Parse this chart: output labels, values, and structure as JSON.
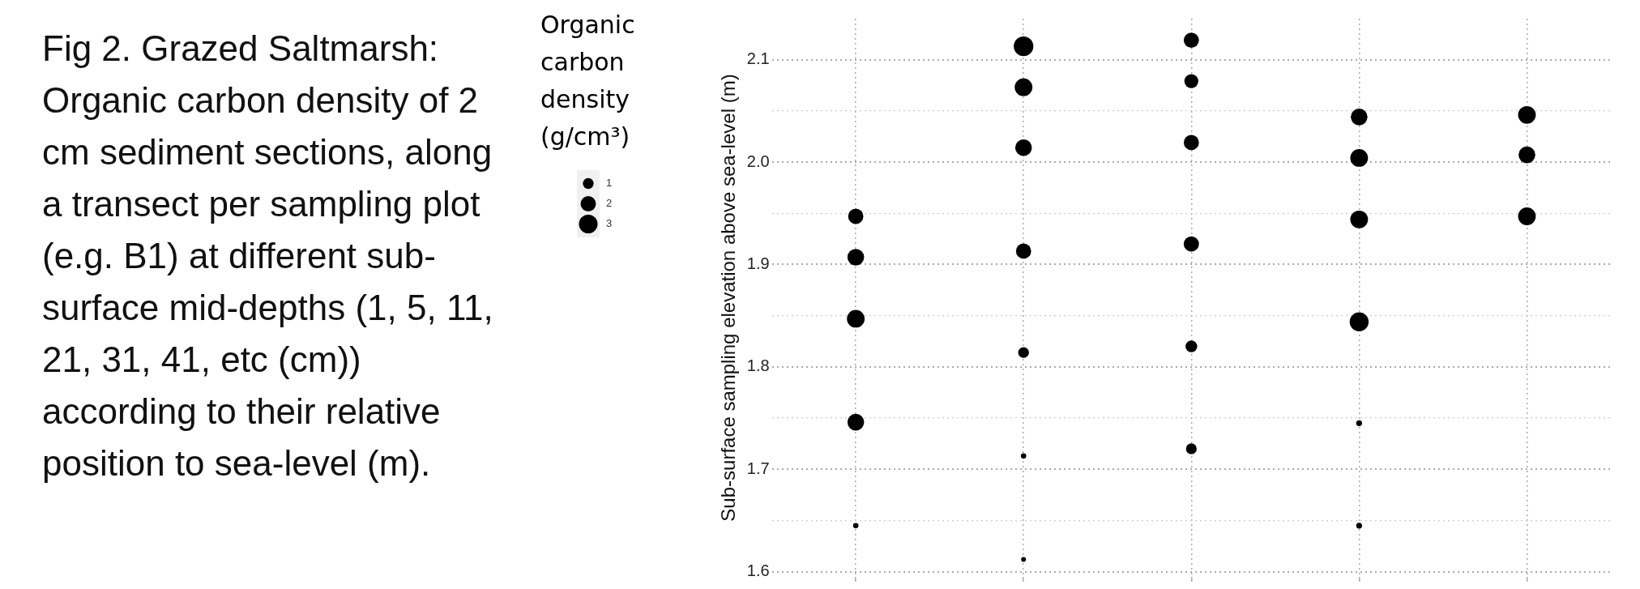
{
  "chart_data": {
    "type": "bubble",
    "title": "Fig 2. Grazed Saltmarsh: Organic carbon density of 2 cm sediment sections, along a transect per sampling plot (e.g. B1) at different sub-surface mid-depths (1, 5, 11, 21, 31, 41, etc (cm)) according to their relative position to sea-level (m).",
    "ylabel": "Sub-surface sampling elevation above sea-level (m)",
    "legend_title": "Organic carbon density (g/cm³)",
    "categories": [
      null,
      null,
      null,
      null,
      null
    ],
    "series": [
      {
        "color": "#000000",
        "values": [
          1.947,
          2.113,
          2.119,
          2.044,
          2.046
        ],
        "sizes": [
          2.0,
          3.3,
          2.0,
          2.4,
          2.7
        ]
      },
      {
        "color": "#000000",
        "values": [
          1.907,
          2.073,
          2.079,
          2.004,
          2.007
        ],
        "sizes": [
          2.4,
          2.7,
          1.7,
          2.7,
          2.4
        ]
      },
      {
        "color": "#000000",
        "values": [
          1.847,
          2.014,
          2.019,
          1.944,
          1.947
        ],
        "sizes": [
          2.7,
          2.4,
          2.0,
          2.7,
          2.7
        ]
      },
      {
        "color": "#000000",
        "values": [
          1.746,
          1.913,
          1.92,
          1.844,
          null
        ],
        "sizes": [
          2.4,
          2.0,
          2.0,
          3.1,
          null
        ]
      },
      {
        "color": "#000000",
        "values": [
          1.645,
          1.814,
          1.82,
          1.745,
          null
        ],
        "sizes": [
          0.25,
          1.0,
          1.2,
          0.3,
          null
        ]
      },
      {
        "color": "#000000",
        "values": [
          null,
          1.713,
          1.72,
          1.645,
          null
        ],
        "sizes": [
          null,
          0.25,
          1.0,
          0.3,
          null
        ]
      },
      {
        "color": "#000000",
        "values": [
          null,
          1.612,
          null,
          null,
          null
        ],
        "sizes": [
          null,
          0.2,
          null,
          null,
          null
        ]
      }
    ],
    "size_legend": [
      1,
      2,
      3
    ],
    "ylim": [
      1.595,
      2.14
    ],
    "yticks": [
      1.6,
      {
        "value": 1.65,
        "label": null
      },
      1.7,
      {
        "value": 1.75,
        "label": null
      },
      1.8,
      {
        "value": 1.85,
        "label": null
      },
      1.9,
      {
        "value": 1.95,
        "label": null
      },
      {
        "value": 2,
        "label": "2.0"
      },
      {
        "value": 2.05,
        "label": null
      },
      2.1
    ],
    "grid": true,
    "tick_labels": "y"
  }
}
